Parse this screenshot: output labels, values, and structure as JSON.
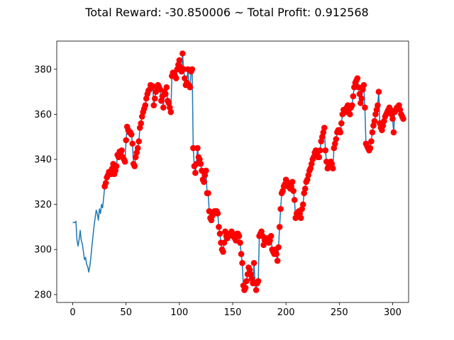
{
  "chart_data": {
    "type": "line",
    "title": "Total Reward: -30.850006 ~ Total Profit: 0.912568",
    "xlabel": "",
    "ylabel": "",
    "xlim": [
      -15,
      315
    ],
    "ylim": [
      276.5,
      392.5
    ],
    "xticks": [
      0,
      50,
      100,
      150,
      200,
      250,
      300
    ],
    "yticks": [
      280,
      300,
      320,
      340,
      360,
      380
    ],
    "grid": false,
    "line_color": "#1f77b4",
    "marker_color": "#ff0000",
    "markers_from_index": 30,
    "series": [
      {
        "values": [
          312,
          312,
          312,
          312.5,
          304,
          301.5,
          304.5,
          308.5,
          304,
          302.5,
          299,
          295.5,
          296.5,
          293.5,
          292.5,
          290,
          292.5,
          296.5,
          301.5,
          306,
          310.5,
          314,
          317.5,
          316,
          313,
          318,
          316,
          320,
          318.5,
          323,
          328,
          329.5,
          332,
          333,
          334.5,
          334,
          333.5,
          336,
          338,
          333.5,
          335,
          337,
          342,
          341,
          343.5,
          343,
          344,
          341,
          340,
          339,
          348.5,
          354.5,
          353,
          352,
          352,
          351,
          347,
          338,
          337,
          341,
          343,
          345,
          348,
          354,
          356,
          359,
          361,
          362.5,
          364,
          367,
          369,
          370.5,
          371,
          373,
          372,
          372.5,
          364,
          367,
          370,
          372,
          373,
          372,
          371,
          366,
          368,
          363,
          370,
          369,
          372,
          366,
          365,
          363,
          361,
          377,
          378.5,
          378,
          377,
          376,
          380,
          382,
          384,
          381,
          379,
          387,
          380,
          376,
          373,
          374,
          380,
          373,
          372,
          379,
          380,
          345,
          337,
          334,
          338,
          345,
          341,
          340,
          338,
          335,
          331,
          330,
          333,
          335,
          325,
          325,
          317,
          314,
          313,
          315,
          316,
          317,
          317,
          317,
          316,
          310,
          307,
          303,
          300,
          299,
          303,
          308,
          306,
          305,
          306,
          307,
          307,
          308,
          306,
          306,
          305,
          304,
          307,
          307,
          306,
          303,
          298,
          294,
          284,
          282,
          283,
          286,
          289,
          292,
          291,
          289,
          287,
          285,
          294,
          285,
          282,
          285,
          286,
          306,
          307,
          308,
          306,
          302,
          304,
          305,
          305,
          304,
          303,
          304,
          306,
          300,
          299,
          298,
          300,
          298,
          295,
          301,
          310,
          318,
          325,
          326,
          328,
          329,
          331,
          330,
          328,
          329,
          327,
          328,
          330,
          326,
          322,
          314,
          316,
          315,
          317,
          316,
          314,
          318,
          320,
          325,
          327,
          330,
          331,
          333,
          335,
          336,
          338,
          340,
          341,
          343,
          344,
          342,
          341,
          341,
          344,
          348,
          350,
          352,
          354,
          344,
          339,
          336,
          337,
          338,
          339,
          338,
          336,
          345,
          347,
          349,
          352,
          353,
          353,
          352,
          356,
          360,
          362,
          361,
          361,
          363,
          364,
          362,
          360,
          363,
          364,
          368,
          372,
          374,
          375,
          376,
          372,
          369,
          365,
          367,
          371,
          373,
          363,
          347,
          346,
          345,
          344,
          345,
          348,
          352,
          355,
          357,
          360,
          362,
          364,
          370,
          356,
          354,
          353,
          355,
          357,
          359,
          360,
          361,
          362,
          363,
          362,
          360,
          358,
          352,
          361,
          362,
          363,
          363,
          364,
          362,
          360,
          359,
          358
        ]
      }
    ]
  }
}
